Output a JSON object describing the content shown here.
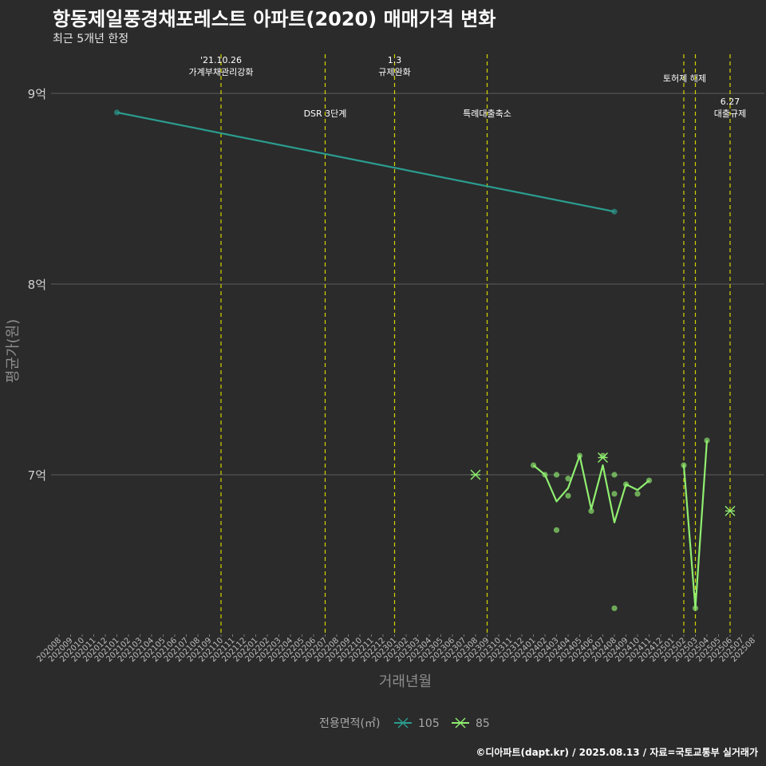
{
  "header": {
    "title": "항동제일풍경채포레스트 아파트(2020) 매매가격 변화",
    "subtitle": "최근 5개년 한정"
  },
  "caption": "©디아파트(dapt.kr) / 2025.08.13 / 자료=국토교통부 실거래가",
  "colors": {
    "background": "#2b2b2b",
    "grid": "#5e5e5e",
    "event_line": "#d4d400",
    "series_105": "#2a9d8f",
    "series_85": "#90ee70"
  },
  "chart_data": {
    "type": "line",
    "xlabel": "거래년월",
    "ylabel": "평균가(원)",
    "ylim": [
      6.2,
      9.3
    ],
    "y_unit": "억",
    "y_ticks": [
      {
        "value": 7,
        "label": "7억"
      },
      {
        "value": 8,
        "label": "8억"
      },
      {
        "value": 9,
        "label": "9억"
      }
    ],
    "categories": [
      "202008",
      "202009",
      "202010",
      "202011",
      "202012",
      "202101",
      "202102",
      "202103",
      "202104",
      "202105",
      "202106",
      "202107",
      "202108",
      "202109",
      "202110",
      "202111",
      "202112",
      "202201",
      "202202",
      "202203",
      "202204",
      "202205",
      "202206",
      "202207",
      "202208",
      "202209",
      "202210",
      "202211",
      "202212",
      "202301",
      "202302",
      "202303",
      "202304",
      "202305",
      "202306",
      "202307",
      "202308",
      "202309",
      "202310",
      "202311",
      "202312",
      "202401",
      "202402",
      "202403",
      "202404",
      "202405",
      "202406",
      "202407",
      "202408",
      "202409",
      "202410",
      "202411",
      "202412",
      "202501",
      "202502",
      "202503",
      "202504",
      "202505",
      "202506",
      "202507",
      "202508"
    ],
    "events": [
      {
        "date": "202110",
        "lines": [
          "'21.10.26",
          "가계부채관리강화"
        ],
        "level": 1
      },
      {
        "date": "202207",
        "lines": [
          "DSR 3단계"
        ],
        "level": 2
      },
      {
        "date": "202301",
        "lines": [
          "1.3",
          "규제완화"
        ],
        "level": 1
      },
      {
        "date": "202309",
        "lines": [
          "특례대출축소"
        ],
        "level": 2
      },
      {
        "date": "202502",
        "lines": [
          "토허제 해제"
        ],
        "level": 1,
        "anchor": "end"
      },
      {
        "date": "202503",
        "lines": [],
        "level": 1
      },
      {
        "date": "202506",
        "lines": [
          "6.27",
          "대출규제"
        ],
        "level": 2
      }
    ],
    "legend": {
      "title": "전용면적(㎡)",
      "position": "bottom",
      "items": [
        "105",
        "85"
      ]
    },
    "series": [
      {
        "name": "105",
        "color": "#2a9d8f",
        "line": [
          [
            "202101",
            8.9
          ],
          [
            "202408",
            8.38
          ]
        ],
        "points": [
          [
            "202101",
            8.9
          ],
          [
            "202408",
            8.38
          ]
        ],
        "crosses": []
      },
      {
        "name": "85",
        "color": "#90ee70",
        "line": [
          [
            "202401",
            7.05
          ],
          [
            "202402",
            7.0
          ],
          [
            "202403",
            6.86
          ],
          [
            "202404",
            6.93
          ],
          [
            "202405",
            7.1
          ],
          [
            "202406",
            6.82
          ],
          [
            "202407",
            7.05
          ],
          [
            "202408",
            6.75
          ],
          [
            "202409",
            6.95
          ],
          [
            "202410",
            6.92
          ],
          [
            "202411",
            6.97
          ],
          null,
          [
            "202502",
            7.05
          ],
          [
            "202503",
            6.3
          ],
          [
            "202504",
            7.18
          ]
        ],
        "points": [
          [
            "202401",
            7.05
          ],
          [
            "202402",
            7.0
          ],
          [
            "202403",
            7.0
          ],
          [
            "202403",
            6.71
          ],
          [
            "202404",
            6.98
          ],
          [
            "202404",
            6.89
          ],
          [
            "202405",
            7.1
          ],
          [
            "202406",
            6.81
          ],
          [
            "202407",
            7.1
          ],
          [
            "202408",
            7.0
          ],
          [
            "202408",
            6.9
          ],
          [
            "202408",
            6.3
          ],
          [
            "202409",
            6.95
          ],
          [
            "202410",
            6.9
          ],
          [
            "202411",
            6.97
          ],
          [
            "202502",
            7.05
          ],
          [
            "202503",
            6.3
          ],
          [
            "202504",
            7.18
          ]
        ],
        "crosses": [
          [
            "202308",
            7.0
          ],
          [
            "202407",
            7.09
          ],
          [
            "202506",
            6.81
          ]
        ]
      }
    ]
  }
}
